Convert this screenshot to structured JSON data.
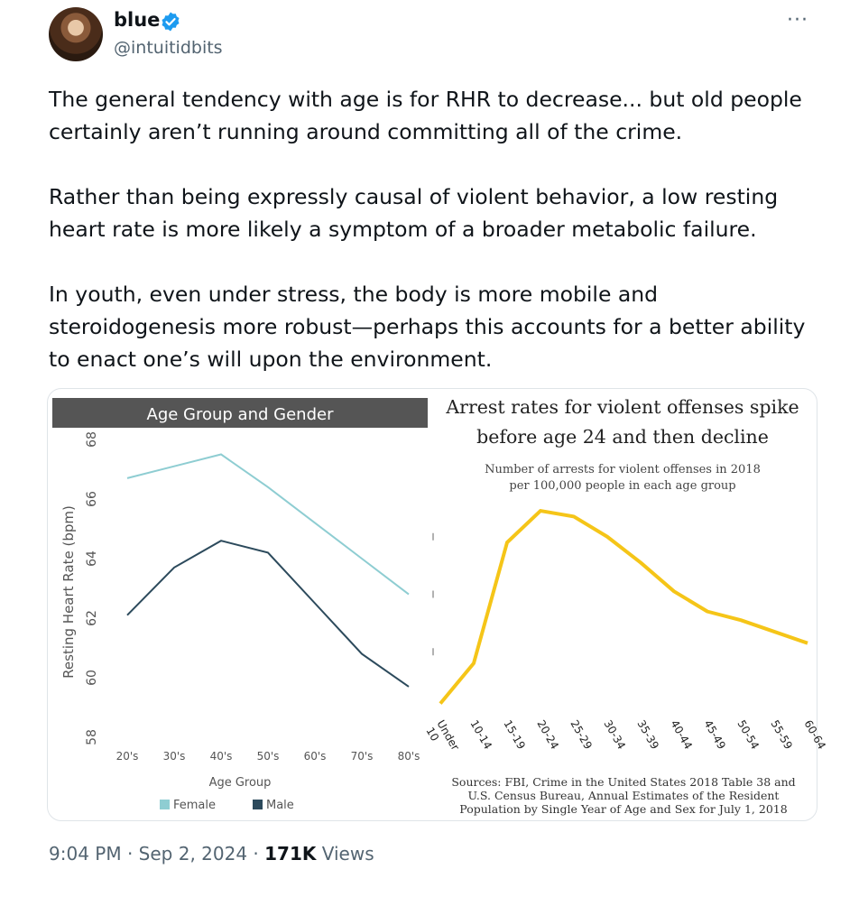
{
  "user": {
    "display_name": "blue",
    "handle": "@intuitidbits",
    "more_label": "···"
  },
  "tweet": {
    "paragraphs": [
      "The general tendency with age is for RHR to decrease... but old people certainly aren’t running around committing all of the crime.",
      "Rather than being expressly causal of violent behavior, a low resting heart rate is more likely a symptom of a broader metabolic failure.",
      "In youth, even under stress, the body is more mobile and steroidogenesis more robust—perhaps this accounts for a better ability to enact one’s will upon the environment."
    ],
    "time": "9:04 PM",
    "date": "Sep 2, 2024",
    "views_count": "171K",
    "views_label": "Views"
  },
  "colors": {
    "verified": "#1d9bf0",
    "female": "#8ecdd2",
    "male": "#2c4a5c",
    "arrest": "#f5c518",
    "header_bar": "#555555"
  },
  "chart_data": [
    {
      "type": "line",
      "title": "Age Group and Gender",
      "xlabel": "Age Group",
      "ylabel": "Resting Heart Rate (bpm)",
      "categories": [
        "20's",
        "30's",
        "40's",
        "50's",
        "60's",
        "70's",
        "80's"
      ],
      "yticks": [
        "68",
        "66",
        "64",
        "62",
        "60",
        "58"
      ],
      "ylim": [
        58,
        68
      ],
      "series": [
        {
          "name": "Female",
          "values": [
            66.7,
            67.1,
            67.5,
            66.4,
            65.2,
            64.0,
            62.8
          ]
        },
        {
          "name": "Male",
          "values": [
            62.1,
            63.7,
            64.6,
            64.2,
            62.5,
            60.8,
            59.7
          ]
        }
      ],
      "legend": "bottom"
    },
    {
      "type": "line",
      "title": "Arrest rates for violent offenses spike before age 24 and then decline",
      "subtitle": "Number of arrests for violent offenses in 2018 per 100,000 people in each age group",
      "categories": [
        "Under 10",
        "10-14",
        "15-19",
        "20-24",
        "25-29",
        "30-34",
        "35-39",
        "40-44",
        "45-49",
        "50-54",
        "55-59",
        "60-64"
      ],
      "series": [
        {
          "values": [
            10,
            80,
            290,
            345,
            335,
            300,
            255,
            205,
            170,
            155,
            135,
            115
          ]
        }
      ],
      "ylim": [
        0,
        400
      ],
      "note": "Sources: FBI, Crime in the United States 2018 Table 38 and U.S. Census Bureau, Annual Estimates of the Resident Population by Single Year of Age and Sex for July 1, 2018",
      "source_lines": [
        "Sources: FBI, Crime in the United States 2018 Table 38 and",
        "U.S. Census Bureau, Annual Estimates of the Resident",
        "Population by Single Year of Age and Sex for July 1, 2018"
      ],
      "title_lines": [
        "Arrest rates for violent offenses spike",
        "before age 24 and then decline"
      ],
      "subtitle_lines": [
        "Number of arrests for violent offenses in 2018",
        "per 100,000 people in each age group"
      ]
    }
  ]
}
